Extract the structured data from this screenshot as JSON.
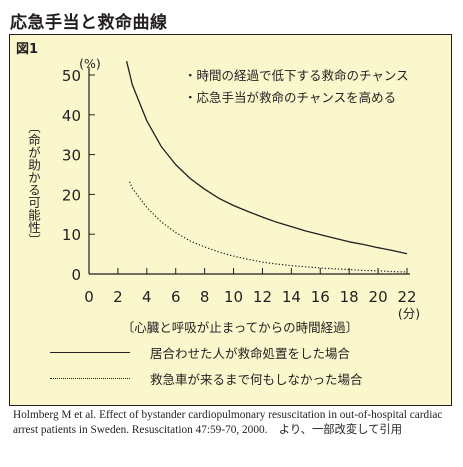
{
  "page_title": "応急手当と救命曲線",
  "figure_label": "図1",
  "chart_data": {
    "type": "line",
    "title": "",
    "ylabel": "〔命が助かる可能性〕",
    "yunit": "(%)",
    "xlabel": "〔心臓と呼吸が止まってからの時間経過〕",
    "xunit": "(分)",
    "xlim": [
      0,
      22
    ],
    "ylim": [
      0,
      50
    ],
    "xticks": [
      "0",
      "2",
      "4",
      "6",
      "8",
      "10",
      "12",
      "14",
      "16",
      "18",
      "20",
      "22"
    ],
    "yticks": [
      "0",
      "10",
      "20",
      "30",
      "40",
      "50"
    ],
    "annotations": [
      "・時間の経過で低下する救命のチャンス",
      "・応急手当が救命のチャンスを高める"
    ],
    "series": [
      {
        "name": "居合わせた人が救命処置をした場合",
        "style": "solid",
        "x": [
          2.6,
          3,
          4,
          5,
          6,
          7,
          8,
          9,
          10,
          11,
          12,
          13,
          14,
          15,
          16,
          17,
          18,
          19,
          20,
          21,
          22
        ],
        "y": [
          53.5,
          47.5,
          38.5,
          32,
          27.5,
          24,
          21.3,
          19,
          17.2,
          15.7,
          14.3,
          13,
          11.9,
          10.8,
          9.9,
          9,
          8.1,
          7.4,
          6.6,
          5.9,
          5.1
        ]
      },
      {
        "name": "救急車が来るまで何もしなかった場合",
        "style": "dotted",
        "x": [
          2.8,
          3,
          4,
          5,
          6,
          7,
          8,
          9,
          10,
          11,
          12,
          13,
          14,
          15,
          16,
          17,
          18,
          19,
          20,
          21,
          22
        ],
        "y": [
          23.2,
          21.5,
          16.7,
          13.1,
          10.4,
          8.3,
          6.8,
          5.5,
          4.5,
          3.7,
          3.0,
          2.5,
          2.1,
          1.8,
          1.5,
          1.3,
          1.1,
          0.9,
          0.8,
          0.6,
          0.5
        ]
      }
    ],
    "colors": {
      "background": "#fbf7cd",
      "line": "#231f20"
    }
  },
  "legend": [
    {
      "label": "居合わせた人が救命処置をした場合",
      "style": "solid"
    },
    {
      "label": "救急車が来るまで何もしなかった場合",
      "style": "dotted"
    }
  ],
  "source_note": "Holmberg M et al. Effect of bystander cardiopulmonary resuscitation in out-of-hospital cardiac arrest patients in Sweden. Resuscitation 47:59-70, 2000.　より、一部改変して引用"
}
